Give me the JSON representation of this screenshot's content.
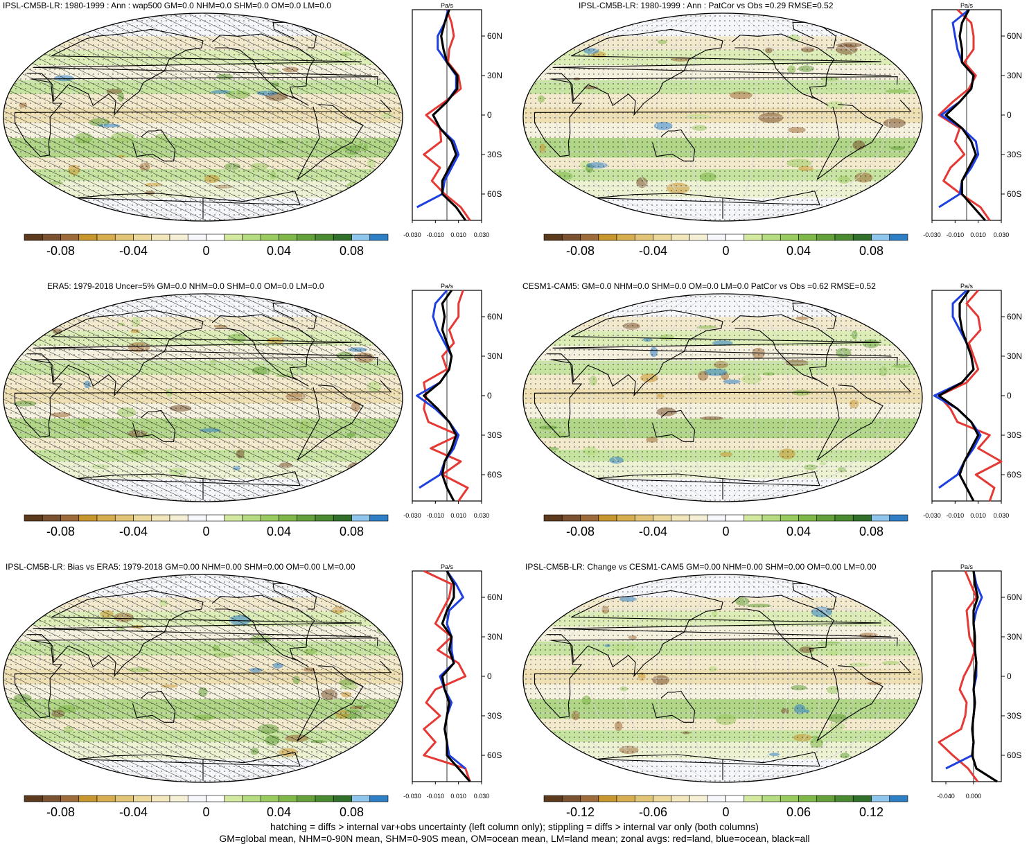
{
  "footer": {
    "line1": "hatching = diffs > internal var+obs uncertainty (left column only); stippling = diffs > internal var only (both columns)",
    "line2": "GM=global mean, NHM=0-90N mean, SHM=0-90S mean, OM=ocean mean, LM=land mean; zonal avgs: red=land, blue=ocean, black=all"
  },
  "colors": {
    "palette": [
      "#5c3a1e",
      "#7a5230",
      "#9e6b3a",
      "#c8962e",
      "#d6ad4f",
      "#e2c477",
      "#ecd89b",
      "#f2e6bd",
      "#f5efd6",
      "#f6f7fb",
      "#ffffff",
      "#d3e9a0",
      "#b5dc80",
      "#9acb60",
      "#7fb848",
      "#64a13a",
      "#4a8a30",
      "#31702a",
      "#8fc6ee",
      "#2f7fc6"
    ],
    "land": "#e53935",
    "ocean": "#1e40e0",
    "all": "#000000",
    "ocean_fill": "#f6f7fb",
    "grid": "#d8d8d8"
  },
  "panels": [
    {
      "title": "IPSL-CM5B-LR: 1980-1999 : Ann : wap500 GM=0.0 NHM=0.0 SHM=0.0 OM=0.0 LM=0.0",
      "hatch": true,
      "colorbar_labels": [
        "-0.08",
        "-0.04",
        "0",
        "0.04",
        "0.08"
      ],
      "zonal_xlabels": [
        "-0.030",
        "-0.010",
        "0.010",
        "0.030"
      ],
      "zonal_unit": "Pa/s"
    },
    {
      "title": "IPSL-CM5B-LR: 1980-1999 : Ann : PatCor vs Obs =0.29 RMSE=0.52",
      "hatch": false,
      "colorbar_labels": [
        "-0.08",
        "-0.04",
        "0",
        "0.04",
        "0.08"
      ],
      "zonal_xlabels": [
        "-0.030",
        "-0.010",
        "0.010",
        "0.030"
      ],
      "zonal_unit": "Pa/s"
    },
    {
      "title": "ERA5: 1979-2018 Uncer=5% GM=0.0 NHM=0.0 SHM=0.0 OM=0.0 LM=0.0",
      "hatch": true,
      "colorbar_labels": [
        "-0.08",
        "-0.04",
        "0",
        "0.04",
        "0.08"
      ],
      "zonal_xlabels": [
        "-0.030",
        "-0.010",
        "0.010",
        "0.030"
      ],
      "zonal_unit": "Pa/s"
    },
    {
      "title": "CESM1-CAM5: GM=0.0 NHM=0.0 SHM=0.0 OM=0.0 LM=0.0 PatCor vs Obs =0.62 RMSE=0.52",
      "hatch": false,
      "colorbar_labels": [
        "-0.08",
        "-0.04",
        "0",
        "0.04",
        "0.08"
      ],
      "zonal_xlabels": [
        "-0.030",
        "-0.010",
        "0.010",
        "0.030"
      ],
      "zonal_unit": "Pa/s"
    },
    {
      "title": "IPSL-CM5B-LR: Bias vs ERA5: 1979-2018 GM=0.00 NHM=0.00 SHM=0.00 OM=0.00 LM=0.00",
      "hatch": true,
      "colorbar_labels": [
        "-0.08",
        "-0.04",
        "0",
        "0.04",
        "0.08"
      ],
      "zonal_xlabels": [
        "-0.030",
        "-0.010",
        "0.010",
        "0.030"
      ],
      "zonal_unit": "Pa/s"
    },
    {
      "title": "IPSL-CM5B-LR: Change vs CESM1-CAM5 GM=0.00 NHM=0.00 SHM=0.00 OM=0.00 LM=0.00",
      "hatch": false,
      "colorbar_labels": [
        "-0.12",
        "-0.06",
        "0",
        "0.06",
        "0.12"
      ],
      "zonal_xlabels": [
        "-0.040",
        "0.000"
      ],
      "zonal_unit": "Pa/s"
    }
  ],
  "chart_data": [
    {
      "type": "line",
      "title": "IPSL-CM5B-LR: 1980-1999 : Ann : wap500 GM=0.0 NHM=0.0 SHM=0.0 OM=0.0 LM=0.0",
      "ylabel": "",
      "yticks": [
        "60N",
        "30N",
        "0",
        "30S",
        "60S"
      ],
      "xticks": [
        "-0.030",
        "-0.010",
        "0.010",
        "0.030"
      ],
      "xlim": [
        -0.03,
        0.03
      ],
      "y": [
        80,
        70,
        60,
        50,
        40,
        30,
        20,
        10,
        0,
        -10,
        -20,
        -30,
        -40,
        -50,
        -60,
        -70,
        -80
      ],
      "series": [
        {
          "name": "land",
          "values": [
            0.0,
            0.004,
            0.006,
            0.002,
            0.001,
            0.01,
            0.012,
            -0.002,
            -0.018,
            -0.006,
            -0.005,
            -0.02,
            -0.006,
            -0.013,
            -0.002,
            0.012,
            0.02
          ]
        },
        {
          "name": "ocean",
          "values": [
            0.001,
            -0.002,
            -0.008,
            -0.008,
            0.0,
            0.008,
            0.008,
            0.0,
            -0.012,
            -0.006,
            0.006,
            0.01,
            0.004,
            -0.002,
            -0.004,
            -0.026,
            null
          ]
        },
        {
          "name": "all",
          "values": [
            0.002,
            -0.002,
            -0.005,
            -0.003,
            0.0,
            0.009,
            0.009,
            0.0,
            -0.012,
            -0.006,
            0.004,
            0.008,
            0.002,
            -0.004,
            -0.004,
            0.008,
            0.016
          ]
        }
      ]
    },
    {
      "type": "line",
      "title": "IPSL-CM5B-LR: 1980-1999 : Ann : PatCor vs Obs =0.29 RMSE=0.52",
      "ylabel": "",
      "yticks": [
        "60N",
        "30N",
        "0",
        "30S",
        "60S"
      ],
      "xticks": [
        "-0.030",
        "-0.010",
        "0.010",
        "0.030"
      ],
      "xlim": [
        -0.03,
        0.03
      ],
      "y": [
        80,
        70,
        60,
        50,
        40,
        30,
        20,
        10,
        0,
        -10,
        -20,
        -30,
        -40,
        -50,
        -60,
        -70,
        -80
      ],
      "series": [
        {
          "name": "land",
          "values": [
            -0.008,
            0.004,
            0.006,
            0.006,
            -0.002,
            0.008,
            0.002,
            -0.012,
            -0.024,
            -0.006,
            -0.01,
            -0.002,
            -0.014,
            -0.02,
            -0.005,
            0.012,
            0.02
          ]
        },
        {
          "name": "ocean",
          "values": [
            0.002,
            -0.012,
            -0.01,
            -0.008,
            -0.004,
            0.006,
            0.004,
            -0.006,
            -0.022,
            -0.004,
            0.008,
            0.01,
            0.004,
            -0.004,
            -0.006,
            -0.024,
            null
          ]
        },
        {
          "name": "all",
          "values": [
            0.002,
            -0.004,
            -0.006,
            -0.004,
            -0.004,
            0.006,
            0.004,
            -0.006,
            -0.018,
            -0.004,
            0.004,
            0.008,
            0.002,
            -0.004,
            -0.004,
            0.006,
            0.016
          ]
        }
      ]
    },
    {
      "type": "line",
      "title": "ERA5: 1979-2018 Uncer=5% GM=0.0 NHM=0.0 SHM=0.0 OM=0.0 LM=0.0",
      "ylabel": "",
      "yticks": [
        "60N",
        "30N",
        "0",
        "30S",
        "60S"
      ],
      "xticks": [
        "-0.030",
        "-0.010",
        "0.010",
        "0.030"
      ],
      "xlim": [
        -0.03,
        0.03
      ],
      "y": [
        80,
        70,
        60,
        50,
        40,
        30,
        20,
        10,
        0,
        -10,
        -20,
        -30,
        -40,
        -50,
        -60,
        -70,
        -80
      ],
      "series": [
        {
          "name": "land",
          "values": [
            0.014,
            0.01,
            0.01,
            0.002,
            0.006,
            -0.004,
            0.0,
            -0.02,
            -0.018,
            -0.02,
            -0.016,
            0.01,
            -0.014,
            0.012,
            -0.004,
            0.018,
            0.01
          ]
        },
        {
          "name": "ocean",
          "values": [
            0.0,
            -0.01,
            -0.012,
            -0.008,
            -0.002,
            0.004,
            0.002,
            -0.006,
            -0.026,
            -0.01,
            0.002,
            0.01,
            0.006,
            -0.002,
            -0.006,
            -0.024,
            null
          ]
        },
        {
          "name": "all",
          "values": [
            0.004,
            -0.004,
            -0.002,
            -0.004,
            0.0,
            0.004,
            0.002,
            -0.006,
            -0.02,
            -0.008,
            0.002,
            0.008,
            0.004,
            -0.002,
            -0.004,
            0.0,
            0.006
          ]
        }
      ]
    },
    {
      "type": "line",
      "title": "CESM1-CAM5: GM=0.0 NHM=0.0 SHM=0.0 OM=0.0 LM=0.0 PatCor vs Obs =0.62 RMSE=0.52",
      "ylabel": "",
      "yticks": [
        "60N",
        "30N",
        "0",
        "30S",
        "60S"
      ],
      "xticks": [
        "-0.030",
        "-0.010",
        "0.010",
        "0.030"
      ],
      "xlim": [
        -0.03,
        0.03
      ],
      "y": [
        80,
        70,
        60,
        50,
        40,
        30,
        20,
        10,
        0,
        -10,
        -20,
        -30,
        -40,
        -50,
        -60,
        -70,
        -80
      ],
      "series": [
        {
          "name": "land",
          "values": [
            0.01,
            0.0,
            0.01,
            0.012,
            0.002,
            0.006,
            0.01,
            0.0,
            -0.024,
            -0.014,
            -0.008,
            0.02,
            0.01,
            0.03,
            0.008,
            0.024,
            0.02
          ]
        },
        {
          "name": "ocean",
          "values": [
            0.0,
            -0.012,
            -0.012,
            -0.006,
            0.0,
            0.004,
            0.006,
            -0.004,
            -0.028,
            -0.008,
            0.004,
            0.012,
            0.006,
            -0.002,
            -0.008,
            -0.024,
            null
          ]
        },
        {
          "name": "all",
          "values": [
            0.002,
            -0.006,
            -0.006,
            -0.004,
            0.0,
            0.004,
            0.006,
            -0.004,
            -0.024,
            -0.008,
            0.004,
            0.01,
            0.004,
            -0.002,
            -0.006,
            0.0,
            0.006
          ]
        }
      ]
    },
    {
      "type": "line",
      "title": "IPSL-CM5B-LR: Bias vs ERA5: 1979-2018 GM=0.00 NHM=0.00 SHM=0.00 OM=0.00 LM=0.00",
      "ylabel": "",
      "yticks": [
        "60N",
        "30N",
        "0",
        "30S",
        "60S"
      ],
      "xticks": [
        "-0.030",
        "-0.010",
        "0.010",
        "0.030"
      ],
      "xlim": [
        -0.03,
        0.03
      ],
      "y": [
        80,
        70,
        60,
        50,
        40,
        30,
        20,
        10,
        0,
        -10,
        -20,
        -30,
        -40,
        -50,
        -60,
        -70,
        -80
      ],
      "series": [
        {
          "name": "land",
          "values": [
            -0.02,
            0.004,
            0.002,
            -0.004,
            -0.01,
            0.004,
            -0.008,
            0.01,
            0.016,
            -0.01,
            -0.018,
            -0.006,
            -0.02,
            -0.01,
            -0.02,
            0.016,
            0.02
          ]
        },
        {
          "name": "ocean",
          "values": [
            0.0,
            0.008,
            0.014,
            0.002,
            0.0,
            0.004,
            0.004,
            0.006,
            -0.006,
            -0.002,
            0.004,
            0.0,
            -0.002,
            0.0,
            0.002,
            0.016,
            null
          ]
        },
        {
          "name": "all",
          "values": [
            0.0,
            0.006,
            0.006,
            0.0,
            -0.004,
            0.004,
            0.002,
            0.006,
            -0.004,
            -0.002,
            0.002,
            0.0,
            -0.002,
            0.0,
            0.0,
            0.01,
            0.02
          ]
        }
      ]
    },
    {
      "type": "line",
      "title": "IPSL-CM5B-LR: Change vs CESM1-CAM5 GM=0.00 NHM=0.00 SHM=0.00 OM=0.00 LM=0.00",
      "ylabel": "",
      "yticks": [
        "60N",
        "30N",
        "0",
        "30S",
        "60S"
      ],
      "xticks": [
        "-0.040",
        "0.000"
      ],
      "xlim": [
        -0.06,
        0.04
      ],
      "y": [
        80,
        70,
        60,
        50,
        40,
        30,
        20,
        10,
        0,
        -10,
        -20,
        -30,
        -40,
        -50,
        -60,
        -70,
        -80
      ],
      "series": [
        {
          "name": "land",
          "values": [
            -0.012,
            -0.004,
            0.004,
            -0.01,
            -0.008,
            -0.006,
            0.002,
            -0.004,
            -0.014,
            -0.02,
            -0.01,
            -0.012,
            -0.018,
            -0.05,
            -0.03,
            -0.008,
            0.006
          ]
        },
        {
          "name": "ocean",
          "values": [
            0.0,
            0.004,
            0.012,
            0.004,
            0.0,
            0.002,
            0.002,
            0.004,
            0.004,
            0.0,
            0.002,
            0.0,
            -0.002,
            0.0,
            -0.002,
            -0.04,
            null
          ]
        },
        {
          "name": "all",
          "values": [
            0.0,
            0.002,
            0.006,
            0.0,
            0.0,
            0.002,
            0.002,
            0.004,
            0.002,
            0.0,
            0.002,
            0.0,
            -0.002,
            0.0,
            -0.002,
            0.004,
            0.034
          ]
        }
      ]
    }
  ]
}
